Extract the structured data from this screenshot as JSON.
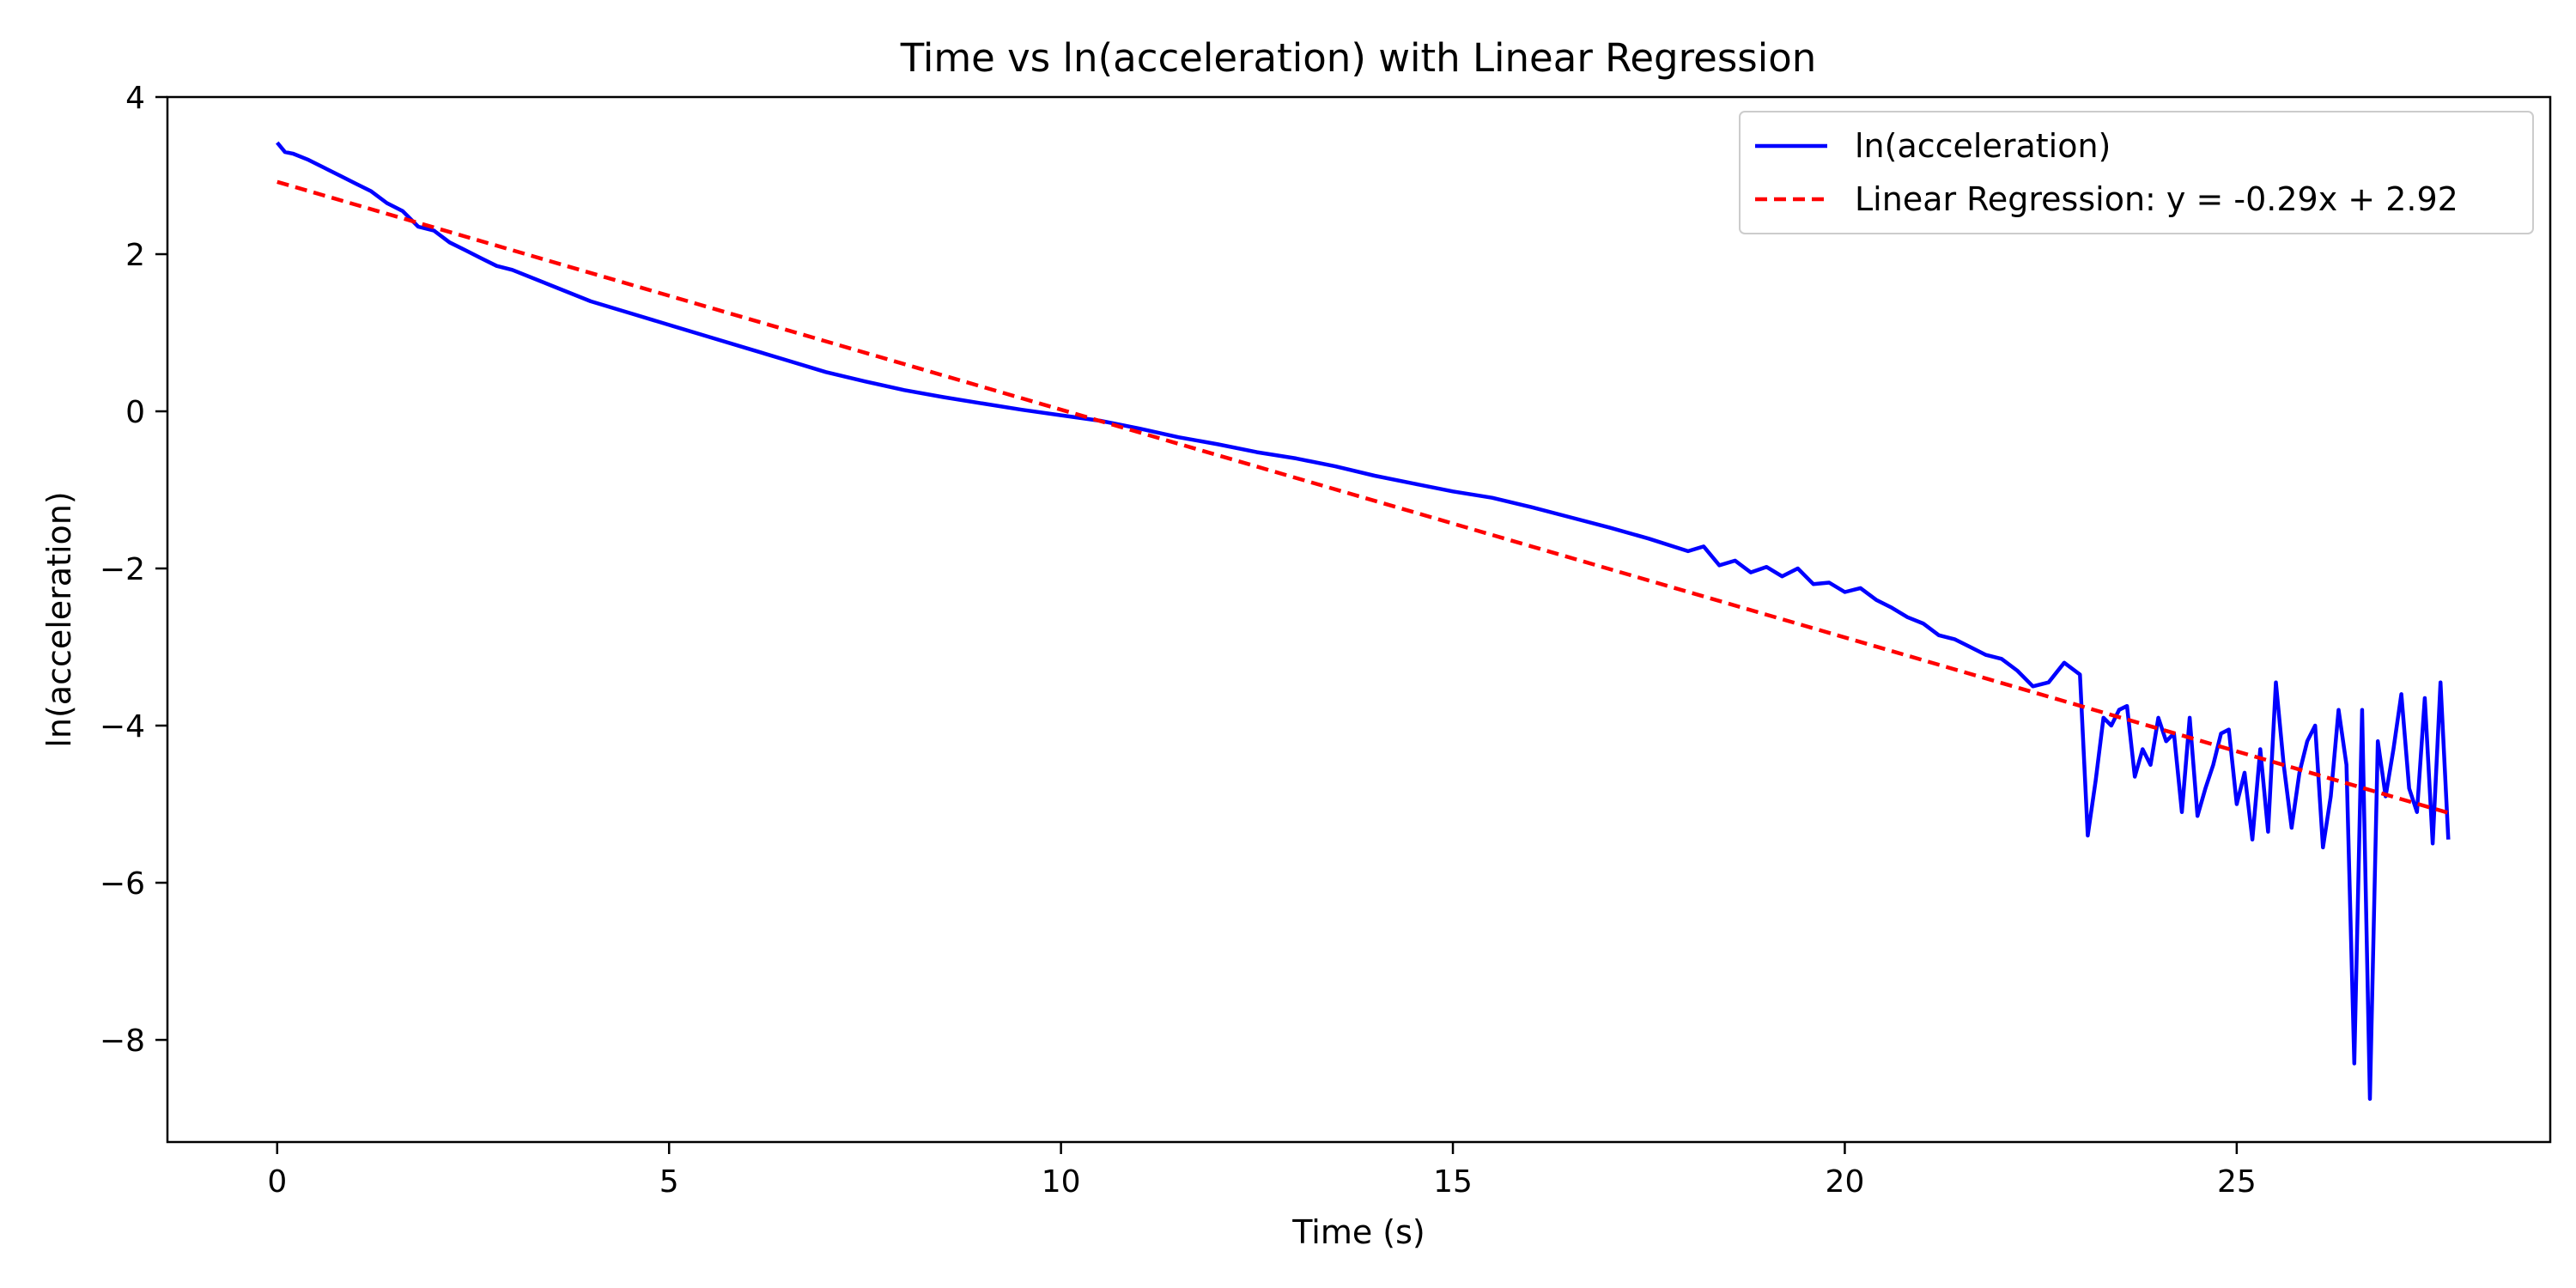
{
  "chart_data": {
    "type": "line",
    "title": "Time vs ln(acceleration) with Linear Regression",
    "xlabel": "Time (s)",
    "ylabel": "ln(acceleration)",
    "xlim": [
      -1.4,
      29.0
    ],
    "ylim": [
      -9.3,
      4.0
    ],
    "xticks": [
      0,
      5,
      10,
      15,
      20,
      25
    ],
    "yticks": [
      4,
      2,
      0,
      -2,
      -4,
      -6,
      -8
    ],
    "ytick_labels": [
      "4",
      "2",
      "0",
      "−2",
      "−4",
      "−6",
      "−8"
    ],
    "grid": false,
    "legend_position": "top-right",
    "series": [
      {
        "name": "ln(acceleration)",
        "color": "#0000ff",
        "style": "solid",
        "x": [
          0,
          0.1,
          0.2,
          0.4,
          0.6,
          0.8,
          1.0,
          1.2,
          1.4,
          1.6,
          1.8,
          2.0,
          2.2,
          2.4,
          2.6,
          2.8,
          3.0,
          3.5,
          4.0,
          4.5,
          5.0,
          5.5,
          6.0,
          6.5,
          7.0,
          7.5,
          8.0,
          8.5,
          9.0,
          9.5,
          10.0,
          10.5,
          11.0,
          11.5,
          12.0,
          12.5,
          13.0,
          13.5,
          14.0,
          14.5,
          15.0,
          15.5,
          16.0,
          16.5,
          17.0,
          17.5,
          18.0,
          18.2,
          18.4,
          18.6,
          18.8,
          19.0,
          19.2,
          19.4,
          19.6,
          19.8,
          20.0,
          20.2,
          20.4,
          20.6,
          20.8,
          21.0,
          21.2,
          21.4,
          21.6,
          21.8,
          22.0,
          22.2,
          22.4,
          22.6,
          22.8,
          23.0,
          23.1,
          23.2,
          23.3,
          23.4,
          23.5,
          23.6,
          23.7,
          23.8,
          23.9,
          24.0,
          24.1,
          24.2,
          24.3,
          24.4,
          24.5,
          24.6,
          24.7,
          24.8,
          24.9,
          25.0,
          25.1,
          25.2,
          25.3,
          25.4,
          25.5,
          25.6,
          25.7,
          25.8,
          25.9,
          26.0,
          26.1,
          26.2,
          26.3,
          26.4,
          26.5,
          26.6,
          26.7,
          26.8,
          26.9,
          27.0,
          27.1,
          27.2,
          27.3,
          27.4,
          27.5,
          27.6,
          27.7
        ],
        "y": [
          3.42,
          3.3,
          3.28,
          3.2,
          3.1,
          3.0,
          2.9,
          2.8,
          2.65,
          2.55,
          2.35,
          2.3,
          2.15,
          2.05,
          1.95,
          1.85,
          1.8,
          1.6,
          1.4,
          1.25,
          1.1,
          0.95,
          0.8,
          0.65,
          0.5,
          0.38,
          0.27,
          0.18,
          0.1,
          0.02,
          -0.05,
          -0.12,
          -0.22,
          -0.33,
          -0.42,
          -0.52,
          -0.6,
          -0.7,
          -0.82,
          -0.92,
          -1.02,
          -1.1,
          -1.22,
          -1.35,
          -1.48,
          -1.62,
          -1.78,
          -1.72,
          -1.96,
          -1.9,
          -2.05,
          -1.98,
          -2.1,
          -2.0,
          -2.2,
          -2.18,
          -2.3,
          -2.25,
          -2.4,
          -2.5,
          -2.62,
          -2.7,
          -2.85,
          -2.9,
          -3.0,
          -3.1,
          -3.15,
          -3.3,
          -3.5,
          -3.45,
          -3.2,
          -3.35,
          -5.4,
          -4.7,
          -3.9,
          -4.0,
          -3.8,
          -3.75,
          -4.65,
          -4.3,
          -4.5,
          -3.9,
          -4.2,
          -4.1,
          -5.1,
          -3.9,
          -5.15,
          -4.8,
          -4.5,
          -4.1,
          -4.05,
          -5.0,
          -4.6,
          -5.45,
          -4.3,
          -5.35,
          -3.45,
          -4.5,
          -5.3,
          -4.6,
          -4.2,
          -4.0,
          -5.55,
          -4.9,
          -3.8,
          -4.5,
          -8.3,
          -3.8,
          -8.75,
          -4.2,
          -4.9,
          -4.3,
          -3.6,
          -4.8,
          -5.1,
          -3.65,
          -5.5,
          -3.45,
          -5.45
        ],
        "note": ""
      },
      {
        "name": "Linear Regression: y = -0.29x + 2.92",
        "color": "#ff0000",
        "style": "dashed",
        "x": [
          0,
          27.7
        ],
        "y": [
          2.92,
          -5.11
        ]
      }
    ]
  }
}
